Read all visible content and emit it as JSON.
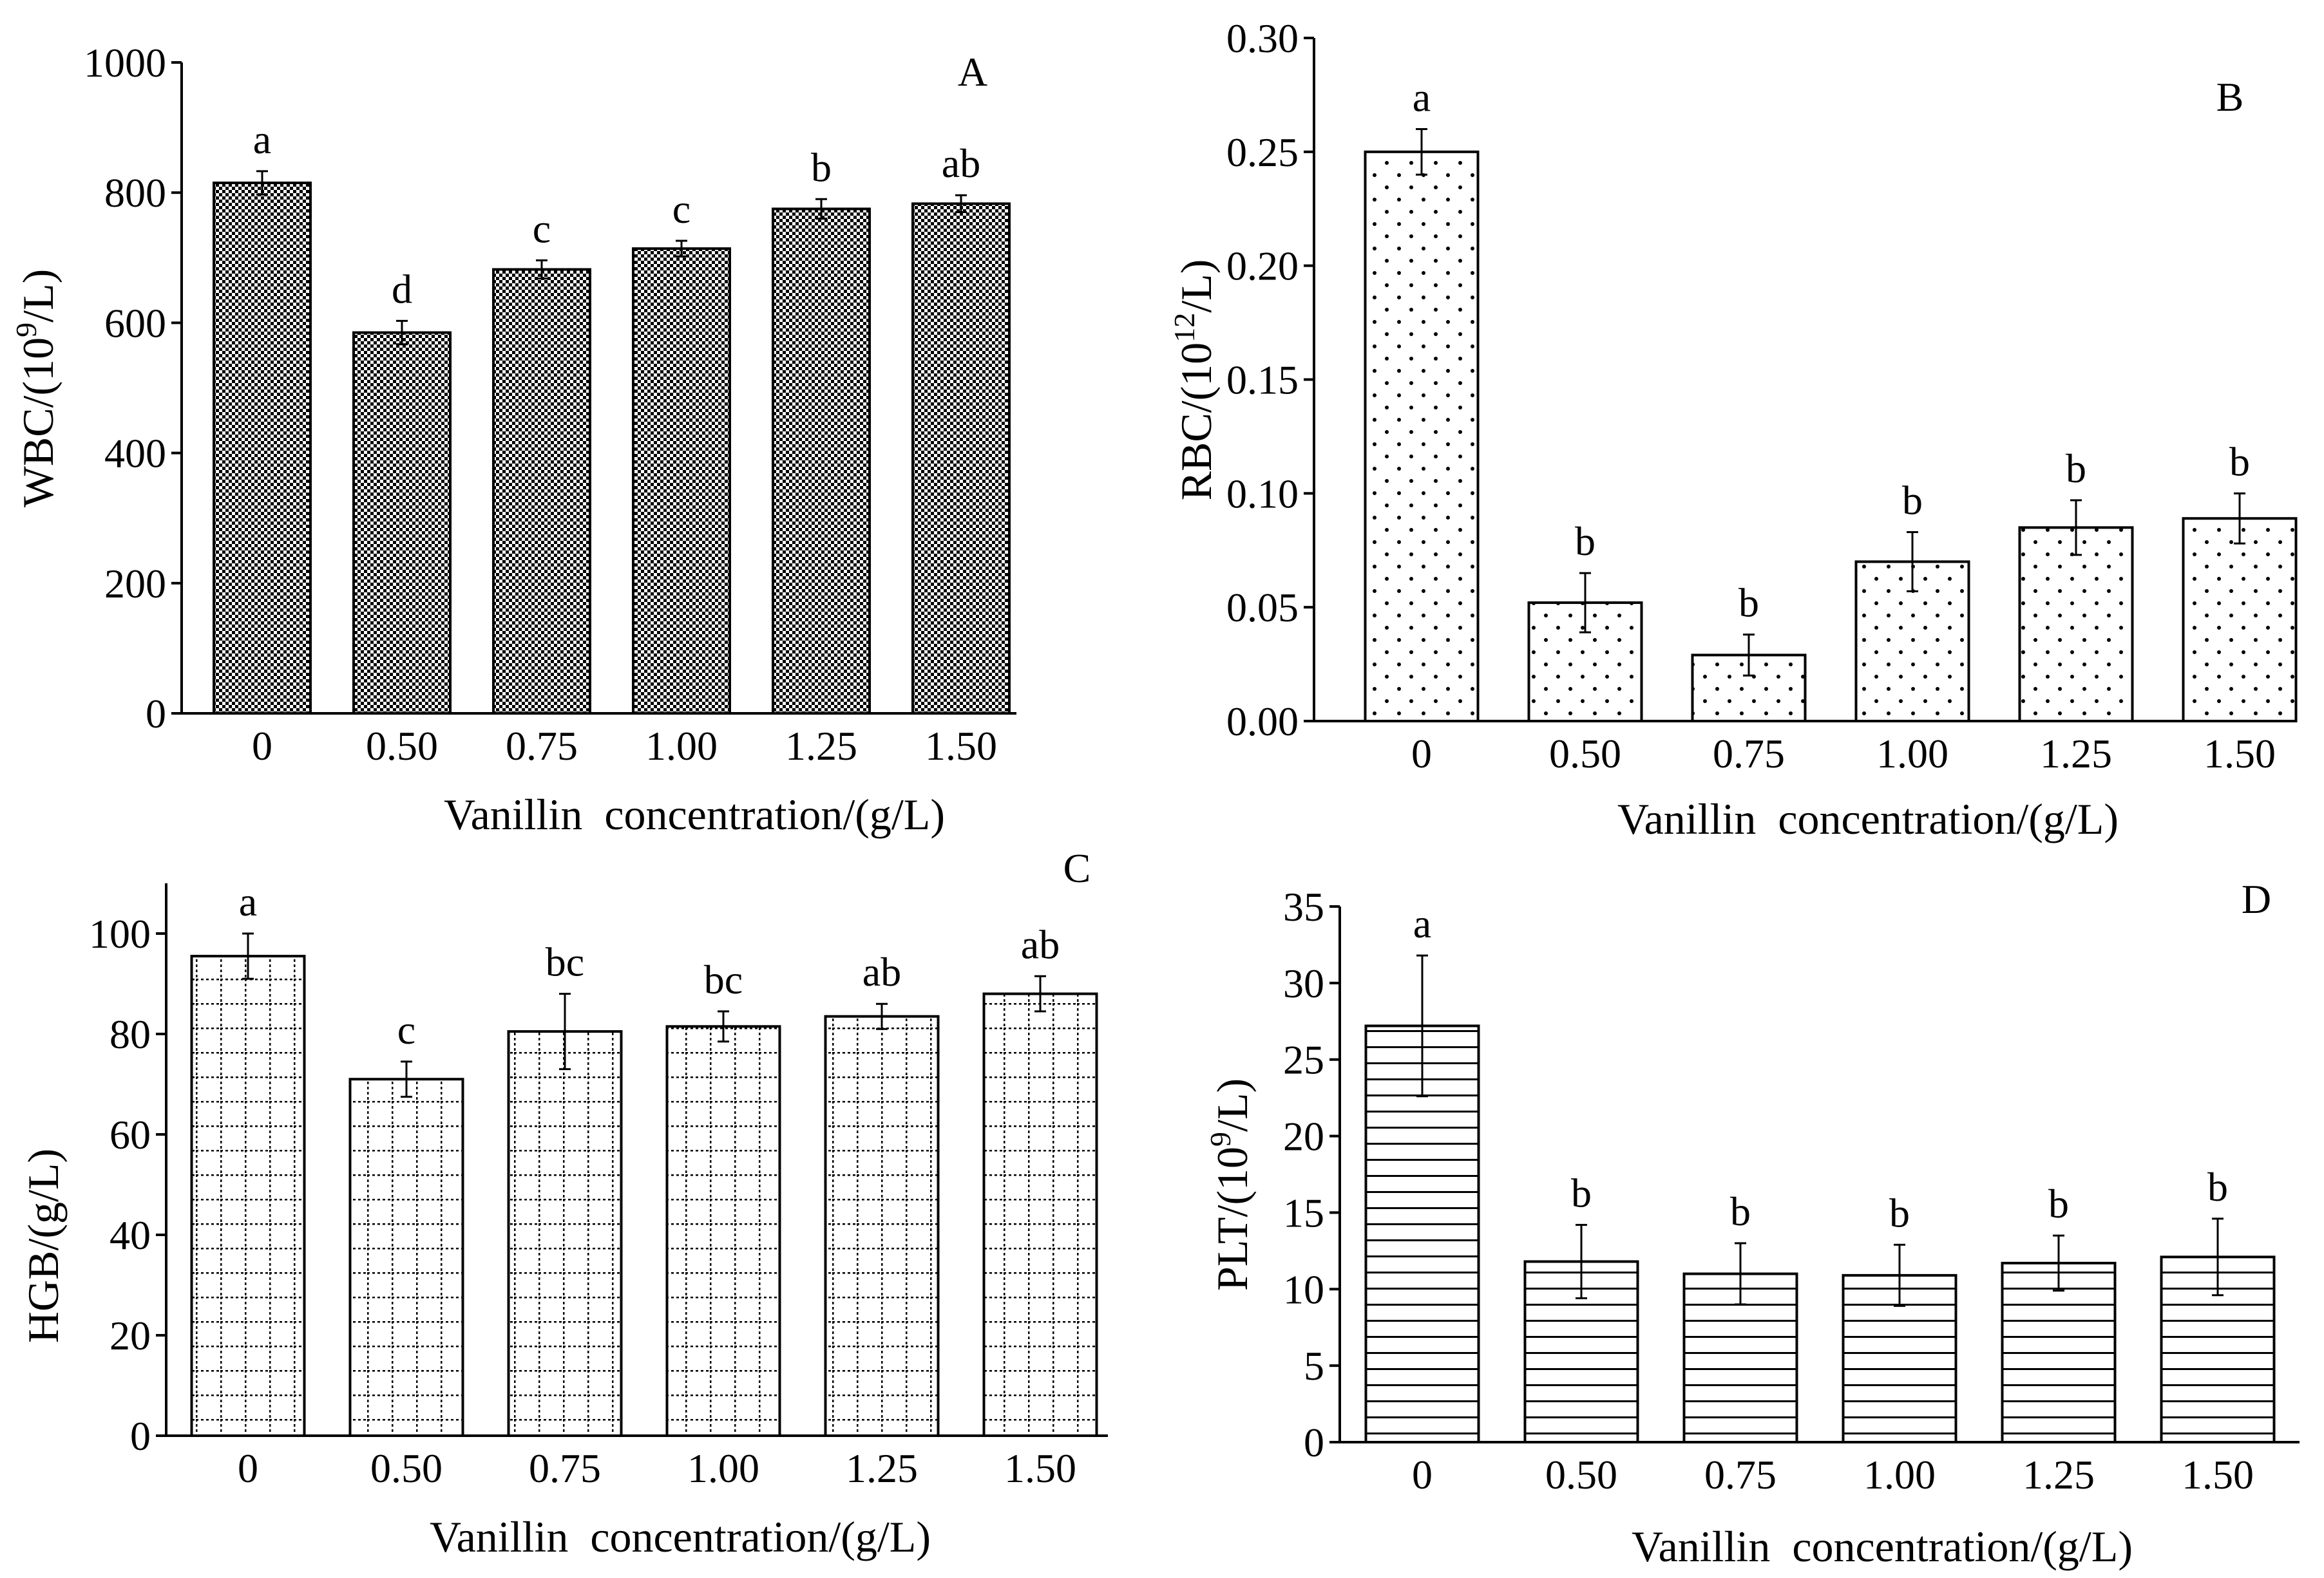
{
  "chart_data": [
    {
      "panel": "A",
      "type": "bar",
      "xlabel": "Vanillin  concentration/(g/L)",
      "ylabel": {
        "pre": "WBC/(10",
        "sup": "9",
        "post": "/L)"
      },
      "categories": [
        "0",
        "0.50",
        "0.75",
        "1.00",
        "1.25",
        "1.50"
      ],
      "values": [
        815,
        585,
        682,
        714,
        775,
        783
      ],
      "errors": [
        18,
        18,
        14,
        12,
        15,
        13
      ],
      "letters": [
        "a",
        "d",
        "c",
        "c",
        "b",
        "ab"
      ],
      "ylim": [
        0,
        1000
      ],
      "yticks": [
        "0",
        "200",
        "400",
        "600",
        "800",
        "1000"
      ],
      "pattern": "checker"
    },
    {
      "panel": "B",
      "type": "bar",
      "xlabel": "Vanillin  concentration/(g/L)",
      "ylabel": {
        "pre": "RBC/(10",
        "sup": "12",
        "post": "/L)"
      },
      "categories": [
        "0",
        "0.50",
        "0.75",
        "1.00",
        "1.25",
        "1.50"
      ],
      "values": [
        0.25,
        0.052,
        0.029,
        0.07,
        0.085,
        0.089
      ],
      "errors": [
        0.01,
        0.013,
        0.009,
        0.013,
        0.012,
        0.011
      ],
      "letters": [
        "a",
        "b",
        "b",
        "b",
        "b",
        "b"
      ],
      "ylim": [
        0,
        0.3
      ],
      "yticks": [
        "0.00",
        "0.05",
        "0.10",
        "0.15",
        "0.20",
        "0.25",
        "0.30"
      ],
      "pattern": "dots"
    },
    {
      "panel": "C",
      "type": "bar",
      "xlabel": "Vanillin  concentration/(g/L)",
      "ylabel": {
        "pre": "HGB/(g/L)",
        "sup": "",
        "post": ""
      },
      "categories": [
        "0",
        "0.50",
        "0.75",
        "1.00",
        "1.25",
        "1.50"
      ],
      "values": [
        95.5,
        71,
        80.5,
        81.5,
        83.5,
        88
      ],
      "errors": [
        4.5,
        3.5,
        7.5,
        3,
        2.5,
        3.5
      ],
      "letters": [
        "a",
        "c",
        "bc",
        "bc",
        "ab",
        "ab"
      ],
      "ylim": [
        0,
        110
      ],
      "yticks": [
        "0",
        "20",
        "40",
        "60",
        "80",
        "100"
      ],
      "pattern": "dotgrid"
    },
    {
      "panel": "D",
      "type": "bar",
      "xlabel": "Vanillin  concentration/(g/L)",
      "ylabel": {
        "pre": "PLT/(10",
        "sup": "9",
        "post": "/L)"
      },
      "categories": [
        "0",
        "0.50",
        "0.75",
        "1.00",
        "1.25",
        "1.50"
      ],
      "values": [
        27.2,
        11.8,
        11,
        10.9,
        11.7,
        12.1
      ],
      "errors": [
        4.6,
        2.4,
        2,
        2,
        1.8,
        2.5
      ],
      "letters": [
        "a",
        "b",
        "b",
        "b",
        "b",
        "b"
      ],
      "ylim": [
        0,
        35
      ],
      "yticks": [
        "0",
        "5",
        "10",
        "15",
        "20",
        "25",
        "30",
        "35"
      ],
      "pattern": "hlines"
    }
  ]
}
